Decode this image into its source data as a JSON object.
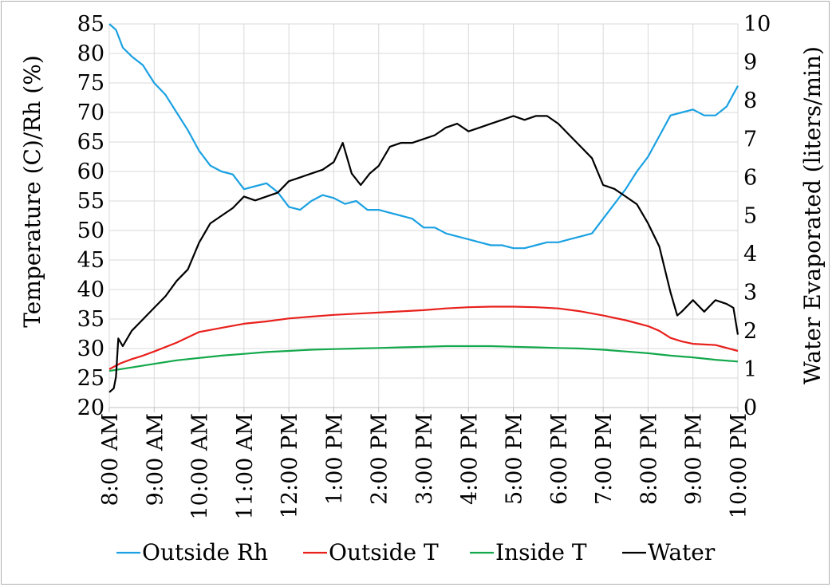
{
  "chart_data": {
    "type": "line",
    "title": "",
    "ylabel": "Temperature (C)/Rh (%)",
    "y2label": "Water Evaporated (liters/min)",
    "ylim": [
      20,
      85
    ],
    "y2lim": [
      0,
      10
    ],
    "yticks": [
      20,
      25,
      30,
      35,
      40,
      45,
      50,
      55,
      60,
      65,
      70,
      75,
      80,
      85
    ],
    "y2ticks": [
      0,
      1,
      2,
      3,
      4,
      5,
      6,
      7,
      8,
      9,
      10
    ],
    "xlim": [
      8,
      22
    ],
    "xticks": [
      {
        "x": 8,
        "label": "8:00 AM"
      },
      {
        "x": 9,
        "label": "9:00 AM"
      },
      {
        "x": 10,
        "label": "10:00 AM"
      },
      {
        "x": 11,
        "label": "11:00 AM"
      },
      {
        "x": 12,
        "label": "12:00 PM"
      },
      {
        "x": 13,
        "label": "1:00 PM"
      },
      {
        "x": 14,
        "label": "2:00 PM"
      },
      {
        "x": 15,
        "label": "3:00 PM"
      },
      {
        "x": 16,
        "label": "4:00 PM"
      },
      {
        "x": 17,
        "label": "5:00 PM"
      },
      {
        "x": 18,
        "label": "6:00 PM"
      },
      {
        "x": 19,
        "label": "7:00 PM"
      },
      {
        "x": 20,
        "label": "8:00 PM"
      },
      {
        "x": 21,
        "label": "9:00 PM"
      },
      {
        "x": 22,
        "label": "10:00 PM"
      }
    ],
    "grid": true,
    "legend": "bottom",
    "series": [
      {
        "name": "Outside Rh",
        "color": "#1ba1e2",
        "axis": "left",
        "x": [
          8,
          8.15,
          8.3,
          8.5,
          8.75,
          9,
          9.25,
          9.5,
          9.75,
          10,
          10.25,
          10.5,
          10.75,
          11,
          11.25,
          11.5,
          11.75,
          12,
          12.25,
          12.5,
          12.75,
          13,
          13.25,
          13.5,
          13.75,
          14,
          14.25,
          14.5,
          14.75,
          15,
          15.25,
          15.5,
          15.75,
          16,
          16.25,
          16.5,
          16.75,
          17,
          17.25,
          17.5,
          17.75,
          18,
          18.25,
          18.5,
          18.75,
          19,
          19.25,
          19.5,
          19.75,
          20,
          20.25,
          20.5,
          20.75,
          21,
          21.25,
          21.5,
          21.75,
          22
        ],
        "y": [
          85,
          84,
          81,
          79.5,
          78,
          75,
          73,
          70,
          67,
          63.5,
          61,
          60,
          59.5,
          57,
          57.5,
          58,
          56.5,
          54,
          53.5,
          55,
          56,
          55.5,
          54.5,
          55,
          53.5,
          53.5,
          53,
          52.5,
          52,
          50.5,
          50.5,
          49.5,
          49,
          48.5,
          48,
          47.5,
          47.5,
          47,
          47,
          47.5,
          48,
          48,
          48.5,
          49,
          49.5,
          52,
          54.5,
          57,
          60,
          62.5,
          66,
          69.5,
          70,
          70.5,
          69.5,
          69.5,
          71,
          74.5
        ]
      },
      {
        "name": "Outside T",
        "color": "#e8201c",
        "axis": "left",
        "x": [
          8,
          8.25,
          8.5,
          8.75,
          9,
          9.5,
          10,
          10.5,
          11,
          11.5,
          12,
          12.5,
          13,
          13.5,
          14,
          14.5,
          15,
          15.5,
          16,
          16.5,
          17,
          17.5,
          18,
          18.5,
          19,
          19.5,
          20,
          20.25,
          20.5,
          20.75,
          21,
          21.5,
          22
        ],
        "y": [
          26.5,
          27.5,
          28.2,
          28.8,
          29.5,
          31,
          32.8,
          33.5,
          34.2,
          34.6,
          35.1,
          35.4,
          35.7,
          35.9,
          36.1,
          36.3,
          36.5,
          36.8,
          37.0,
          37.1,
          37.1,
          37.0,
          36.8,
          36.3,
          35.6,
          34.8,
          33.8,
          33.0,
          31.8,
          31.2,
          30.8,
          30.6,
          29.6
        ]
      },
      {
        "name": "Inside T",
        "color": "#13a84b",
        "axis": "left",
        "x": [
          8,
          8.5,
          9,
          9.5,
          10,
          10.5,
          11,
          11.5,
          12,
          12.5,
          13,
          13.5,
          14,
          14.5,
          15,
          15.5,
          16,
          16.5,
          17,
          17.5,
          18,
          18.5,
          19,
          19.5,
          20,
          20.5,
          21,
          21.5,
          22
        ],
        "y": [
          26.2,
          26.8,
          27.4,
          28,
          28.4,
          28.8,
          29.1,
          29.4,
          29.6,
          29.8,
          29.9,
          30,
          30.1,
          30.2,
          30.3,
          30.4,
          30.4,
          30.4,
          30.3,
          30.2,
          30.1,
          30,
          29.8,
          29.5,
          29.2,
          28.8,
          28.5,
          28.1,
          27.8
        ]
      },
      {
        "name": "Water",
        "color": "#000000",
        "axis": "right",
        "x": [
          8,
          8.1,
          8.15,
          8.2,
          8.3,
          8.5,
          8.75,
          9,
          9.25,
          9.5,
          9.75,
          10,
          10.25,
          10.5,
          10.75,
          11,
          11.25,
          11.5,
          11.75,
          12,
          12.25,
          12.5,
          12.75,
          13,
          13.2,
          13.4,
          13.6,
          13.8,
          14,
          14.25,
          14.5,
          14.75,
          15,
          15.25,
          15.5,
          15.75,
          16,
          16.25,
          16.5,
          16.75,
          17,
          17.25,
          17.5,
          17.75,
          18,
          18.25,
          18.5,
          18.75,
          19,
          19.25,
          19.5,
          19.75,
          20,
          20.25,
          20.5,
          20.65,
          20.75,
          21,
          21.25,
          21.5,
          21.75,
          21.9,
          22
        ],
        "y": [
          0.4,
          0.5,
          0.8,
          1.8,
          1.6,
          2.0,
          2.3,
          2.6,
          2.9,
          3.3,
          3.6,
          4.3,
          4.8,
          5.0,
          5.2,
          5.5,
          5.4,
          5.5,
          5.6,
          5.9,
          6.0,
          6.1,
          6.2,
          6.4,
          6.9,
          6.1,
          5.8,
          6.1,
          6.3,
          6.8,
          6.9,
          6.9,
          7.0,
          7.1,
          7.3,
          7.4,
          7.2,
          7.3,
          7.4,
          7.5,
          7.6,
          7.5,
          7.6,
          7.6,
          7.4,
          7.1,
          6.8,
          6.5,
          5.8,
          5.7,
          5.5,
          5.3,
          4.8,
          4.2,
          3.0,
          2.4,
          2.5,
          2.8,
          2.5,
          2.8,
          2.7,
          2.6,
          1.9
        ]
      }
    ]
  }
}
